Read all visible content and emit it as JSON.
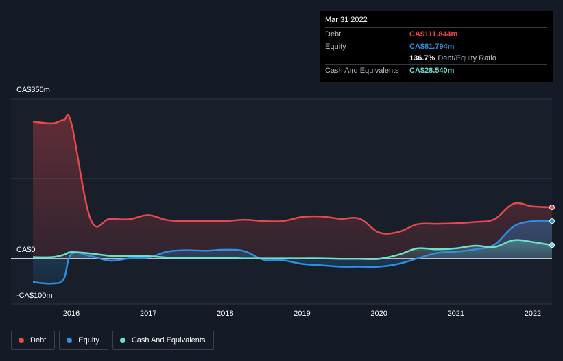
{
  "tooltip": {
    "date": "Mar 31 2022",
    "debt_label": "Debt",
    "debt_value": "CA$111.844m",
    "equity_label": "Equity",
    "equity_value": "CA$81.794m",
    "ratio_value": "136.7%",
    "ratio_label": "Debt/Equity Ratio",
    "cash_label": "Cash And Equivalents",
    "cash_value": "CA$28.540m"
  },
  "colors": {
    "debt": "#e5484d",
    "equity": "#2f8fe0",
    "cash": "#6de0cc",
    "background": "#151b26"
  },
  "legend": {
    "debt": "Debt",
    "equity": "Equity",
    "cash": "Cash And Equivalents"
  },
  "chart_data": {
    "type": "area",
    "ylim": [
      -100,
      350
    ],
    "y_tick_labels": [
      "CA$350m",
      "CA$0",
      "-CA$100m"
    ],
    "y_ticks": [
      350,
      0,
      -100
    ],
    "x_tick_labels": [
      "2016",
      "2017",
      "2018",
      "2019",
      "2020",
      "2021",
      "2022"
    ],
    "x_ticks": [
      2016,
      2017,
      2018,
      2019,
      2020,
      2021,
      2022
    ],
    "xlim": [
      2015.5,
      2022.25
    ],
    "grid": "horizontal",
    "legend_position": "bottom-left",
    "series": [
      {
        "name": "Debt",
        "x": [
          2015.5,
          2015.75,
          2015.9,
          2016.0,
          2016.25,
          2016.5,
          2016.75,
          2017.0,
          2017.25,
          2017.5,
          2017.75,
          2018.0,
          2018.25,
          2018.5,
          2018.75,
          2019.0,
          2019.25,
          2019.5,
          2019.75,
          2020.0,
          2020.25,
          2020.5,
          2020.75,
          2021.0,
          2021.25,
          2021.5,
          2021.75,
          2022.0,
          2022.25
        ],
        "values": [
          300,
          296,
          303,
          296,
          86,
          87,
          86,
          95,
          84,
          82,
          82,
          82,
          85,
          82,
          82,
          91,
          92,
          87,
          87,
          57,
          58,
          75,
          76,
          77,
          80,
          86,
          120,
          114,
          112
        ]
      },
      {
        "name": "Equity",
        "x": [
          2015.5,
          2015.75,
          2015.9,
          2016.0,
          2016.25,
          2016.5,
          2016.75,
          2017.0,
          2017.25,
          2017.5,
          2017.75,
          2018.0,
          2018.25,
          2018.5,
          2018.75,
          2019.0,
          2019.25,
          2019.5,
          2019.75,
          2020.0,
          2020.25,
          2020.5,
          2020.75,
          2021.0,
          2021.25,
          2021.5,
          2021.75,
          2022.0,
          2022.25
        ],
        "values": [
          -52,
          -55,
          -45,
          10,
          5,
          -5,
          0,
          2,
          15,
          18,
          17,
          19,
          16,
          -3,
          -4,
          -12,
          -15,
          -18,
          -18,
          -18,
          -12,
          0,
          12,
          15,
          20,
          30,
          70,
          82,
          82
        ]
      },
      {
        "name": "Cash And Equivalents",
        "x": [
          2015.5,
          2015.75,
          2015.9,
          2016.0,
          2016.25,
          2016.5,
          2016.75,
          2017.0,
          2017.25,
          2017.5,
          2017.75,
          2018.0,
          2018.25,
          2018.5,
          2018.75,
          2019.0,
          2019.25,
          2019.5,
          2019.75,
          2020.0,
          2020.25,
          2020.5,
          2020.75,
          2021.0,
          2021.25,
          2021.5,
          2021.75,
          2022.0,
          2022.25
        ],
        "values": [
          3,
          3,
          8,
          14,
          11,
          6,
          5,
          5,
          2,
          1,
          1,
          1,
          0,
          0,
          0,
          0,
          0,
          -1,
          -1,
          -1,
          8,
          22,
          20,
          22,
          28,
          25,
          40,
          36,
          29
        ]
      }
    ]
  }
}
